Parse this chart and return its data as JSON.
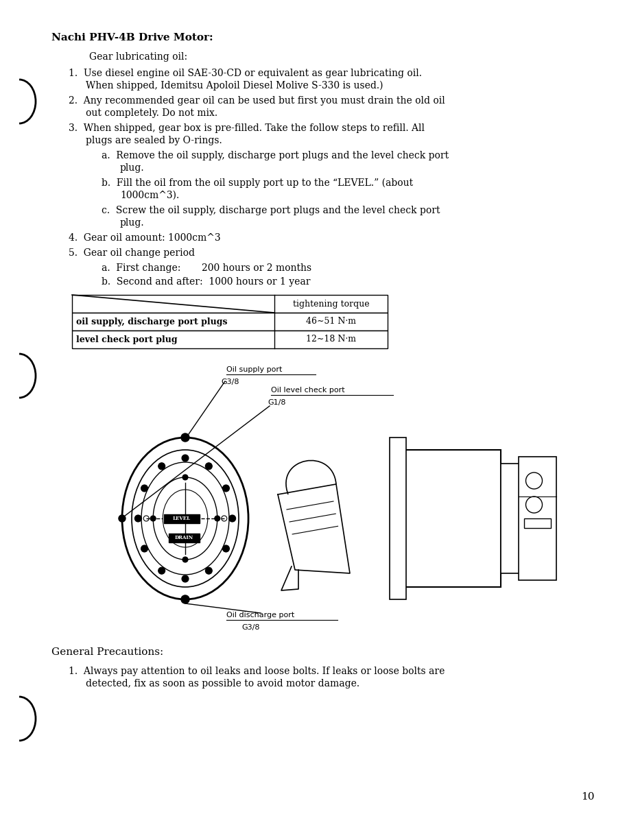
{
  "bg_color": "#ffffff",
  "page_number": "10",
  "heading": "Nachi PHV-4B Drive Motor:",
  "subheading": "Gear lubricating oil:",
  "item1_l1": "1.  Use diesel engine oil SAE-30-CD or equivalent as gear lubricating oil.",
  "item1_l2": "When shipped, Idemitsu Apoloil Diesel Molive S-330 is used.)",
  "item2_l1": "2.  Any recommended gear oil can be used but first you must drain the old oil",
  "item2_l2": "out completely. Do not mix.",
  "item3_l1": "3.  When shipped, gear box is pre-filled. Take the follow steps to refill. All",
  "item3_l2": "plugs are sealed by O-rings.",
  "item3a_l1": "a.  Remove the oil supply, discharge port plugs and the level check port",
  "item3a_l2": "plug.",
  "item3b_l1": "b.  Fill the oil from the oil supply port up to the “LEVEL.” (about",
  "item3b_l2": "1000cm^3).",
  "item3c_l1": "c.  Screw the oil supply, discharge port plugs and the level check port",
  "item3c_l2": "plug.",
  "item4": "4.  Gear oil amount: 1000cm^3",
  "item5": "5.  Gear oil change period",
  "item5a": "a.  First change:       200 hours or 2 months",
  "item5b": "b.  Second and after:  1000 hours or 1 year",
  "tbl_hdr": "tightening torque",
  "tbl_r1c1": "oil supply, discharge port plugs",
  "tbl_r1c2": "46∼51 N·m",
  "tbl_r2c1": "level check port plug",
  "tbl_r2c2": "12∼18 N·m",
  "lbl_supply": "Oil supply port",
  "lbl_supply2": "G3/8",
  "lbl_level": "Oil level check port",
  "lbl_level2": "G1/8",
  "lbl_discharge": "Oil discharge port",
  "lbl_discharge2": "G3/8",
  "gen_prec": "General Precautions:",
  "prec1_l1": "1.  Always pay attention to oil leaks and loose bolts. If leaks or loose bolts are",
  "prec1_l2": "detected, fix as soon as possible to avoid motor damage."
}
